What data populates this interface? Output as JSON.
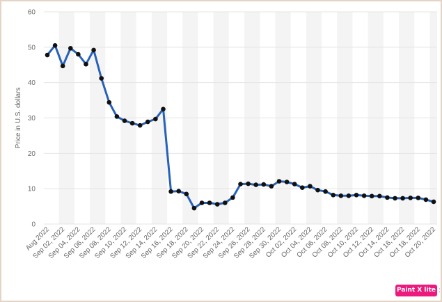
{
  "chart_data": {
    "type": "line",
    "xlabel": "",
    "ylabel": "Price in U.S. dollars",
    "ylim": [
      0,
      60
    ],
    "yticks": [
      0,
      10,
      20,
      30,
      40,
      50,
      60
    ],
    "grid": true,
    "legend": "none",
    "tick_labels": [
      "Aug 2022",
      "Sep 02, 2022",
      "Sep 04, 2022",
      "Sep 06, 2022",
      "Sep 08, 2022",
      "Sep 10, 2022",
      "Sep 12, 2022",
      "Sep 14, 2022",
      "Sep 16, 2022",
      "Sep 18, 2022",
      "Sep 20, 2022",
      "Sep 22, 2022",
      "Sep 24, 2022",
      "Sep 26, 2022",
      "Sep 28, 2022",
      "Sep 30, 2022",
      "Oct 02, 2022",
      "Oct 04, 2022",
      "Oct 06, 2022",
      "Oct 08, 2022",
      "Oct 10, 2022",
      "Oct 12, 2022",
      "Oct 14, 2022",
      "Oct 16, 2022",
      "Oct 18, 2022",
      "Oct 20, 2022"
    ],
    "series": [
      {
        "values": [
          47.8,
          50.5,
          44.7,
          49.7,
          48.0,
          45.2,
          49.2,
          41.2,
          34.4,
          30.4,
          29.2,
          28.5,
          27.9,
          28.9,
          29.7,
          32.5,
          9.2,
          9.3,
          8.5,
          4.5,
          6.0,
          6.0,
          5.6,
          6.0,
          7.5,
          11.3,
          11.4,
          11.1,
          11.2,
          10.7,
          12.1,
          11.9,
          11.3,
          10.3,
          10.7,
          9.6,
          9.2,
          8.2,
          8.0,
          8.0,
          8.2,
          8.0,
          7.9,
          7.9,
          7.5,
          7.3,
          7.3,
          7.4,
          7.4,
          6.9,
          6.3
        ]
      }
    ]
  },
  "colors": {
    "line": "#2861b8",
    "marker": "#111111",
    "grid": "#e4e4e4",
    "band": "#f4f4f4",
    "axis_text": "#666666"
  },
  "watermark": {
    "text": "Paint X lite",
    "color": "#ec1a7c",
    "trailing_mark": ":"
  }
}
